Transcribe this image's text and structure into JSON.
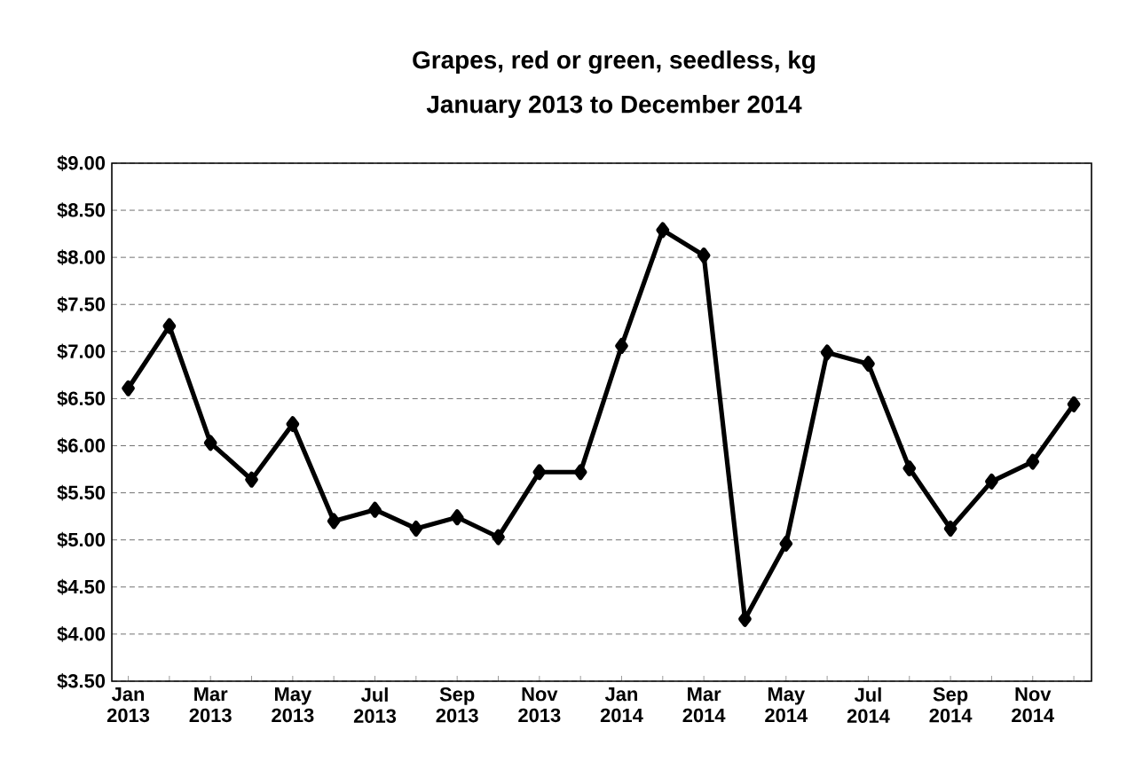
{
  "chart_data": {
    "type": "line",
    "title": "Grapes, red or green, seedless, kg",
    "subtitle": "January 2013 to December 2014",
    "categories": [
      "Jan 2013",
      null,
      "Mar 2013",
      null,
      "May 2013",
      null,
      "Jul 2013",
      null,
      "Sep 2013",
      null,
      "Nov 2013",
      null,
      "Jan 2014",
      null,
      "Mar 2014",
      null,
      "May 2014",
      null,
      "Jul 2014",
      null,
      "Sep 2014",
      null,
      "Nov 2014",
      null
    ],
    "values": [
      6.61,
      7.27,
      6.03,
      5.64,
      6.23,
      5.2,
      5.32,
      5.12,
      5.24,
      5.03,
      5.72,
      5.72,
      7.06,
      8.29,
      8.02,
      4.16,
      4.96,
      6.99,
      6.87,
      5.76,
      5.12,
      5.62,
      5.83,
      6.44
    ],
    "color": "#000000",
    "marker": "diamond",
    "line_style": "solid",
    "grid": "y",
    "ylim": [
      3.5,
      9.0
    ],
    "yticks": [
      {
        "value": 3.5,
        "label": "$3.50"
      },
      {
        "value": 4.0,
        "label": "$4.00"
      },
      {
        "value": 4.5,
        "label": "$4.50"
      },
      {
        "value": 5.0,
        "label": "$5.00"
      },
      {
        "value": 5.5,
        "label": "$5.50"
      },
      {
        "value": 6.0,
        "label": "$6.00"
      },
      {
        "value": 6.5,
        "label": "$6.50"
      },
      {
        "value": 7.0,
        "label": "$7.00"
      },
      {
        "value": 7.5,
        "label": "$7.50"
      },
      {
        "value": 8.0,
        "label": "$8.00"
      },
      {
        "value": 8.5,
        "label": "$8.50"
      },
      {
        "value": 9.0,
        "label": "$9.00"
      }
    ]
  }
}
